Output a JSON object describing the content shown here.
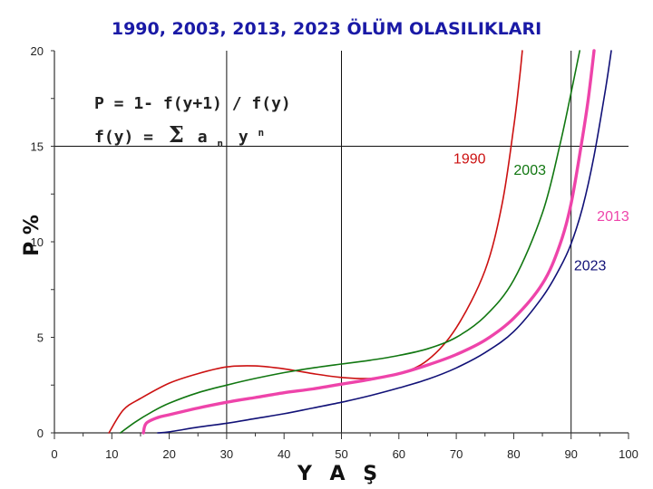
{
  "chart_data": {
    "type": "line",
    "title": "1990, 2003, 2013, 2023 ÖLÜM OLASILIKLARI",
    "xlabel": "Y A Ş",
    "ylabel": "P %",
    "xlim": [
      0,
      100
    ],
    "ylim": [
      0,
      20
    ],
    "x_ticks": [
      "0",
      "10",
      "20",
      "30",
      "40",
      "50",
      "60",
      "70",
      "80",
      "90",
      "100"
    ],
    "y_ticks": [
      "0",
      "5",
      "10",
      "15",
      "20"
    ],
    "formula": {
      "line1": "P = 1- f(y+1) / f(y)",
      "line2_prefix": "f(y) =",
      "sigma": "Σ",
      "a": "a",
      "n_sub": "n",
      "y": "y",
      "n_sup": "n"
    },
    "series": [
      {
        "name": "1990",
        "color": "#cc1111",
        "width": 1.6,
        "points": [
          [
            9.5,
            0
          ],
          [
            12,
            1.2
          ],
          [
            15,
            1.8
          ],
          [
            20,
            2.6
          ],
          [
            25,
            3.1
          ],
          [
            30,
            3.45
          ],
          [
            35,
            3.5
          ],
          [
            40,
            3.35
          ],
          [
            45,
            3.1
          ],
          [
            50,
            2.9
          ],
          [
            55,
            2.85
          ],
          [
            60,
            3.1
          ],
          [
            65,
            3.8
          ],
          [
            70,
            5.5
          ],
          [
            75,
            8.5
          ],
          [
            78,
            12
          ],
          [
            80,
            16
          ],
          [
            81,
            18.5
          ],
          [
            81.5,
            20
          ]
        ]
      },
      {
        "name": "2003",
        "color": "#117711",
        "width": 1.6,
        "points": [
          [
            11.5,
            0
          ],
          [
            14,
            0.55
          ],
          [
            17,
            1.1
          ],
          [
            20,
            1.55
          ],
          [
            25,
            2.1
          ],
          [
            30,
            2.5
          ],
          [
            35,
            2.85
          ],
          [
            40,
            3.15
          ],
          [
            45,
            3.4
          ],
          [
            50,
            3.6
          ],
          [
            55,
            3.8
          ],
          [
            60,
            4.05
          ],
          [
            65,
            4.4
          ],
          [
            70,
            5.0
          ],
          [
            75,
            6.1
          ],
          [
            80,
            8.0
          ],
          [
            85,
            11.5
          ],
          [
            88,
            15.0
          ],
          [
            90,
            17.8
          ],
          [
            91.5,
            20
          ]
        ]
      },
      {
        "name": "2013",
        "color": "#ee44aa",
        "width": 3.4,
        "points": [
          [
            15.5,
            0
          ],
          [
            16,
            0.5
          ],
          [
            18,
            0.8
          ],
          [
            20,
            0.95
          ],
          [
            25,
            1.3
          ],
          [
            30,
            1.6
          ],
          [
            35,
            1.85
          ],
          [
            40,
            2.1
          ],
          [
            45,
            2.3
          ],
          [
            50,
            2.55
          ],
          [
            55,
            2.8
          ],
          [
            60,
            3.1
          ],
          [
            65,
            3.55
          ],
          [
            70,
            4.1
          ],
          [
            75,
            4.85
          ],
          [
            80,
            6.0
          ],
          [
            85,
            7.8
          ],
          [
            88,
            9.8
          ],
          [
            90,
            12.0
          ],
          [
            92,
            15.5
          ],
          [
            93,
            17.5
          ],
          [
            94,
            20
          ]
        ]
      },
      {
        "name": "2023",
        "color": "#111177",
        "width": 1.6,
        "points": [
          [
            18,
            0
          ],
          [
            20,
            0.05
          ],
          [
            25,
            0.3
          ],
          [
            30,
            0.5
          ],
          [
            35,
            0.75
          ],
          [
            40,
            1.0
          ],
          [
            45,
            1.3
          ],
          [
            50,
            1.6
          ],
          [
            55,
            1.95
          ],
          [
            60,
            2.35
          ],
          [
            65,
            2.8
          ],
          [
            70,
            3.4
          ],
          [
            75,
            4.2
          ],
          [
            80,
            5.3
          ],
          [
            85,
            7.1
          ],
          [
            88,
            8.6
          ],
          [
            90,
            9.9
          ],
          [
            92,
            11.8
          ],
          [
            94,
            14.5
          ],
          [
            96,
            18.0
          ],
          [
            97,
            20
          ]
        ]
      }
    ],
    "series_labels": [
      {
        "text": "1990",
        "x": 69.5,
        "y": 14.1,
        "color": "#cc1111"
      },
      {
        "text": "2003",
        "x": 80,
        "y": 13.5,
        "color": "#117711"
      },
      {
        "text": "2013",
        "x": 94.5,
        "y": 11.1,
        "color": "#ee44aa"
      },
      {
        "text": "2023",
        "x": 90.5,
        "y": 8.5,
        "color": "#111177"
      }
    ],
    "reference_lines": {
      "vertical": [
        30,
        50,
        90
      ],
      "horizontal": [
        15
      ]
    },
    "grid": false
  }
}
